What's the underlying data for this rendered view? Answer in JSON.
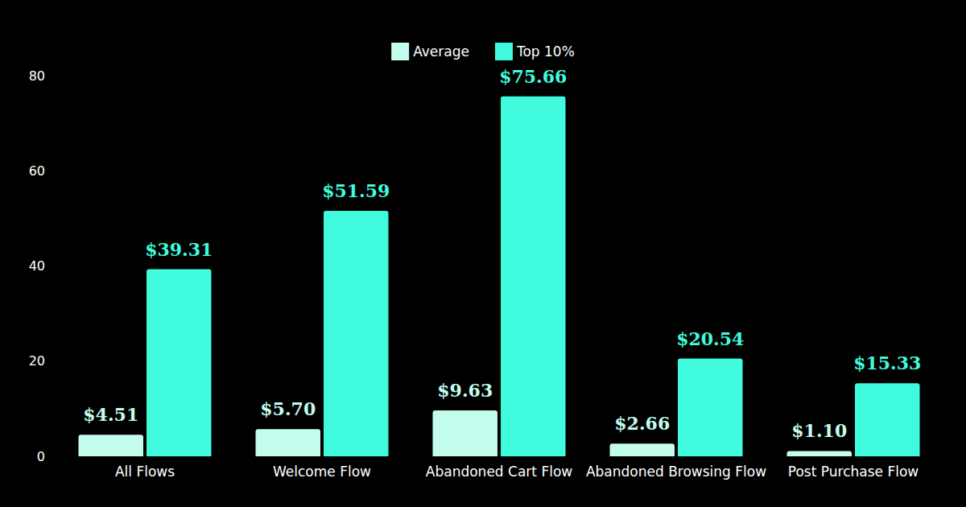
{
  "chart_data": {
    "type": "bar",
    "categories": [
      "All Flows",
      "Welcome Flow",
      "Abandoned Cart Flow",
      "Abandoned Browsing Flow",
      "Post Purchase Flow"
    ],
    "series": [
      {
        "name": "Average",
        "color": "#c4fdee",
        "values": [
          4.51,
          5.7,
          9.63,
          2.66,
          1.1
        ],
        "value_labels": [
          "$4.51",
          "$5.70",
          "$9.63",
          "$2.66",
          "$1.10"
        ]
      },
      {
        "name": "Top 10%",
        "color": "#40fbdd",
        "values": [
          39.31,
          51.59,
          75.66,
          20.54,
          15.33
        ],
        "value_labels": [
          "$39.31",
          "$51.59",
          "$75.66",
          "$20.54",
          "$15.33"
        ]
      }
    ],
    "ylim": [
      0,
      80
    ],
    "yticks": [
      0,
      20,
      40,
      60,
      80
    ],
    "grid": false,
    "legend": "top",
    "data_labels": true
  }
}
